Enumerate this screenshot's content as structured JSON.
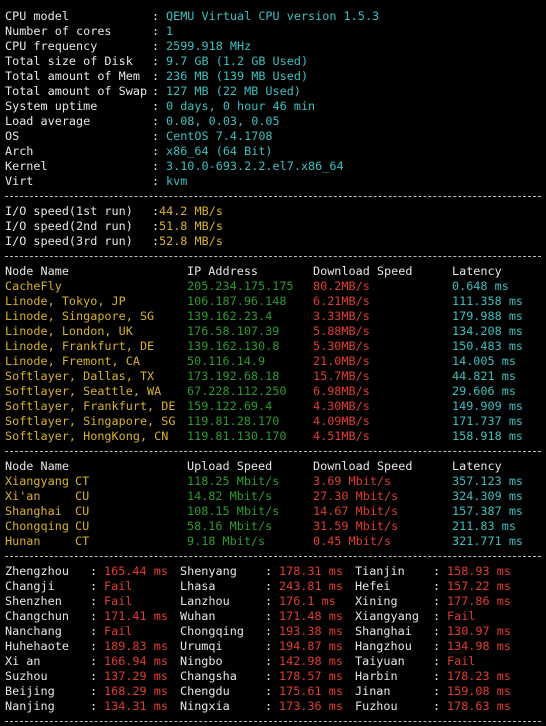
{
  "colors": {
    "background": "#000000",
    "text": "#e6e6e6",
    "cyan": "#3bc0c0",
    "yellow": "#d7b22a",
    "green": "#2f9a2f",
    "red": "#e03c31"
  },
  "system_info": [
    {
      "label": "CPU model",
      "value": "QEMU Virtual CPU version 1.5.3"
    },
    {
      "label": "Number of cores",
      "value": "1"
    },
    {
      "label": "CPU frequency",
      "value": "2599.918 MHz"
    },
    {
      "label": "Total size of Disk",
      "value": "9.7 GB (1.2 GB Used)"
    },
    {
      "label": "Total amount of Mem",
      "value": "236 MB (139 MB Used)"
    },
    {
      "label": "Total amount of Swap",
      "value": "127 MB (22 MB Used)"
    },
    {
      "label": "System uptime",
      "value": "0 days, 0 hour 46 min"
    },
    {
      "label": "Load average",
      "value": "0.08, 0.03, 0.05"
    },
    {
      "label": "OS",
      "value": "CentOS 7.4.1708"
    },
    {
      "label": "Arch",
      "value": "x86_64 (64 Bit)"
    },
    {
      "label": "Kernel",
      "value": "3.10.0-693.2.2.el7.x86_64"
    },
    {
      "label": "Virt",
      "value": "kvm"
    }
  ],
  "io_speed": [
    {
      "label": "I/O speed(1st run)",
      "value": "44.2 MB/s"
    },
    {
      "label": "I/O speed(2nd run)",
      "value": "51.8 MB/s"
    },
    {
      "label": "I/O speed(3rd run)",
      "value": "52.8 MB/s"
    }
  ],
  "download_table": {
    "headers": [
      "Node Name",
      "IP Address",
      "Download Speed",
      "Latency"
    ],
    "rows": [
      [
        "CacheFly",
        "205.234.175.175",
        "80.2MB/s",
        "0.648 ms"
      ],
      [
        "Linode, Tokyo, JP",
        "106.187.96.148",
        "6.21MB/s",
        "111.358 ms"
      ],
      [
        "Linode, Singapore, SG",
        "139.162.23.4",
        "3.33MB/s",
        "179.988 ms"
      ],
      [
        "Linode, London, UK",
        "176.58.107.39",
        "5.88MB/s",
        "134.208 ms"
      ],
      [
        "Linode, Frankfurt, DE",
        "139.162.130.8",
        "5.30MB/s",
        "150.483 ms"
      ],
      [
        "Linode, Fremont, CA",
        "50.116.14.9",
        "21.0MB/s",
        "14.005 ms"
      ],
      [
        "Softlayer, Dallas, TX",
        "173.192.68.18",
        "15.7MB/s",
        "44.821 ms"
      ],
      [
        "Softlayer, Seattle, WA",
        "67.228.112.250",
        "6.98MB/s",
        "29.606 ms"
      ],
      [
        "Softlayer, Frankfurt, DE",
        "159.122.69.4",
        "4.30MB/s",
        "149.909 ms"
      ],
      [
        "Softlayer, Singapore, SG",
        "119.81.28.170",
        "4.09MB/s",
        "171.737 ms"
      ],
      [
        "Softlayer, HongKong, CN",
        "119.81.130.170",
        "4.51MB/s",
        "158.918 ms"
      ]
    ]
  },
  "upload_table": {
    "headers": [
      "Node Name",
      "Upload Speed",
      "Download Speed",
      "Latency"
    ],
    "rows": [
      [
        "Xiangyang",
        "CT",
        "118.25 Mbit/s",
        "3.69 Mbit/s",
        "357.123 ms"
      ],
      [
        "Xi'an",
        "CU",
        "14.82 Mbit/s",
        "27.30 Mbit/s",
        "324.309 ms"
      ],
      [
        "Shanghai",
        "CU",
        "108.15 Mbit/s",
        "14.67 Mbit/s",
        "157.387 ms"
      ],
      [
        "Chongqing",
        "CU",
        "58.16 Mbit/s",
        "31.59 Mbit/s",
        "211.83 ms"
      ],
      [
        "Hunan",
        "CT",
        "9.18 Mbit/s",
        "0.45 Mbit/s",
        "321.771 ms"
      ]
    ]
  },
  "ping_table": [
    [
      [
        "Zhengzhou",
        "165.44 ms"
      ],
      [
        "Shenyang",
        "178.31 ms"
      ],
      [
        "Tianjin",
        "158.93 ms"
      ]
    ],
    [
      [
        "Changji",
        "Fail"
      ],
      [
        "Lhasa",
        "243.81 ms"
      ],
      [
        "Hefei",
        "157.22 ms"
      ]
    ],
    [
      [
        "Shenzhen",
        "Fail"
      ],
      [
        "Lanzhou",
        "176.1 ms"
      ],
      [
        "Xining",
        "177.86 ms"
      ]
    ],
    [
      [
        "Changchun",
        "171.41 ms"
      ],
      [
        "Wuhan",
        "171.48 ms"
      ],
      [
        "Xiangyang",
        "Fail"
      ]
    ],
    [
      [
        "Nanchang",
        "Fail"
      ],
      [
        "Chongqing",
        "193.38 ms"
      ],
      [
        "Shanghai",
        "130.97 ms"
      ]
    ],
    [
      [
        "Huhehaote",
        "189.83 ms"
      ],
      [
        "Urumqi",
        "194.87 ms"
      ],
      [
        "Hangzhou",
        "134.98 ms"
      ]
    ],
    [
      [
        "Xi an",
        "166.94 ms"
      ],
      [
        "Ningbo",
        "142.98 ms"
      ],
      [
        "Taiyuan",
        "Fail"
      ]
    ],
    [
      [
        "Suzhou",
        "137.29 ms"
      ],
      [
        "Changsha",
        "178.57 ms"
      ],
      [
        "Harbin",
        "178.23 ms"
      ]
    ],
    [
      [
        "Beijing",
        "168.29 ms"
      ],
      [
        "Chengdu",
        "175.61 ms"
      ],
      [
        "Jinan",
        "159.08 ms"
      ]
    ],
    [
      [
        "Nanjing",
        "134.31 ms"
      ],
      [
        "Ningxia",
        "173.36 ms"
      ],
      [
        "Fuzhou",
        "178.63 ms"
      ]
    ]
  ]
}
